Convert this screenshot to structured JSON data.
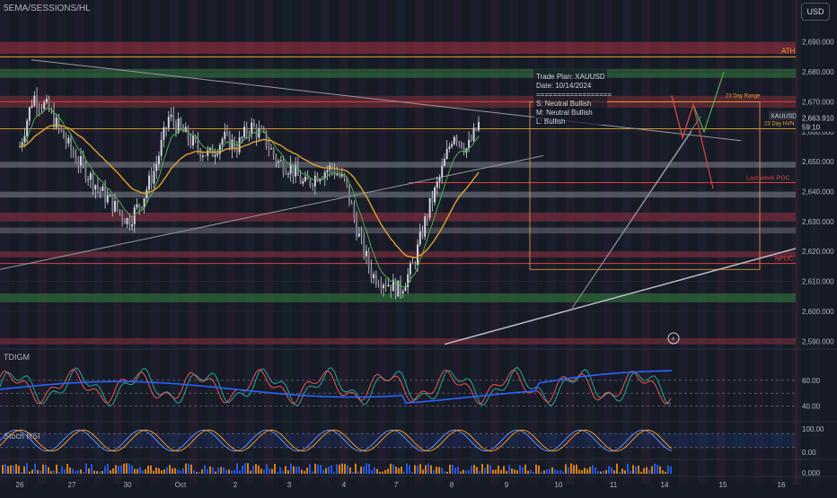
{
  "header": {
    "indicator_title": "5EMA/SESSIONS/HL",
    "currency_button": "USD"
  },
  "symbol_tag": "XAUUSD",
  "last_price": "2,663.910",
  "countdown": "59:10",
  "annotations": {
    "ath": "ATH",
    "range23": "23 Day Range",
    "hvn23": "23 Day HVN",
    "last_week_poc": "Last week POC",
    "npoc": "NPOC"
  },
  "trade_plan": {
    "title": "Trade Plan: XAUUSD",
    "date": "Date: 10/14/2024",
    "separator": "==================",
    "short": "S: Neutral Bullish",
    "medium": "M: Neutral Bullish",
    "long": "L: Bullish"
  },
  "panes": {
    "tdigm": "TDIGM",
    "stoch": "Stoch RSI"
  },
  "colors": {
    "background": "#161a25",
    "candle": "#d1d4dc",
    "ema_fast": "#4caf50",
    "ema_slow": "#e0a030",
    "red_level": "#e0403a",
    "orange_level": "#f0a030",
    "tdi_blue": "#2962ff",
    "tdi_green": "#26a69a",
    "tdi_red": "#ef5350",
    "stoch_blue": "#5b8ff9",
    "stoch_orange": "#f7931a"
  },
  "chart_data": {
    "type": "candlestick",
    "symbol": "XAUUSD",
    "x_ticks": [
      "26",
      "27",
      "30",
      "Oct",
      "2",
      "3",
      "4",
      "7",
      "8",
      "9",
      "10",
      "11",
      "14",
      "15",
      "16"
    ],
    "y_ticks": [
      "2,690.000",
      "2,680.000",
      "2,670.000",
      "2,660.000",
      "2,650.000",
      "2,640.000",
      "2,630.000",
      "2,620.000",
      "2,610.000",
      "2,600.000",
      "2,590.000"
    ],
    "ylim": [
      2588,
      2695
    ],
    "closes_by_session": [
      [
        26,
        2655
      ],
      [
        26.5,
        2672
      ],
      [
        27,
        2668
      ],
      [
        27.5,
        2660
      ],
      [
        28,
        2652
      ],
      [
        29,
        2640
      ],
      [
        30,
        2630
      ],
      [
        30.5,
        2637
      ],
      [
        31,
        2648
      ],
      [
        31.5,
        2665
      ],
      [
        32,
        2660
      ],
      [
        32.5,
        2655
      ],
      [
        33,
        2652
      ],
      [
        33.5,
        2658
      ],
      [
        34,
        2655
      ],
      [
        34.5,
        2662
      ],
      [
        35,
        2658
      ],
      [
        35.5,
        2650
      ],
      [
        36,
        2648
      ],
      [
        36.5,
        2642
      ],
      [
        37,
        2646
      ],
      [
        37.5,
        2648
      ],
      [
        38,
        2643
      ],
      [
        38.5,
        2625
      ],
      [
        39,
        2612
      ],
      [
        39.5,
        2610
      ],
      [
        40,
        2607
      ],
      [
        40.5,
        2615
      ],
      [
        41,
        2632
      ],
      [
        41.5,
        2645
      ],
      [
        42,
        2660
      ],
      [
        42.5,
        2654
      ],
      [
        43,
        2664
      ]
    ],
    "levels": [
      {
        "price": 2685,
        "label": "ATH"
      },
      {
        "price": 2670,
        "label": "23 Day Range"
      },
      {
        "price": 2661,
        "label": "23 Day HVN"
      },
      {
        "price": 2643,
        "label": "Last week POC"
      },
      {
        "price": 2616,
        "label": "NPOC"
      }
    ],
    "last_price": 2663.91,
    "tdi_ticks": [
      "60.00",
      "40.00"
    ],
    "tdi_ylim": [
      30,
      80
    ],
    "stoch_ticks": [
      "100.00",
      "0.00"
    ],
    "stoch_ylim": [
      0,
      100
    ],
    "volume_ticks": [
      "0.000"
    ]
  }
}
